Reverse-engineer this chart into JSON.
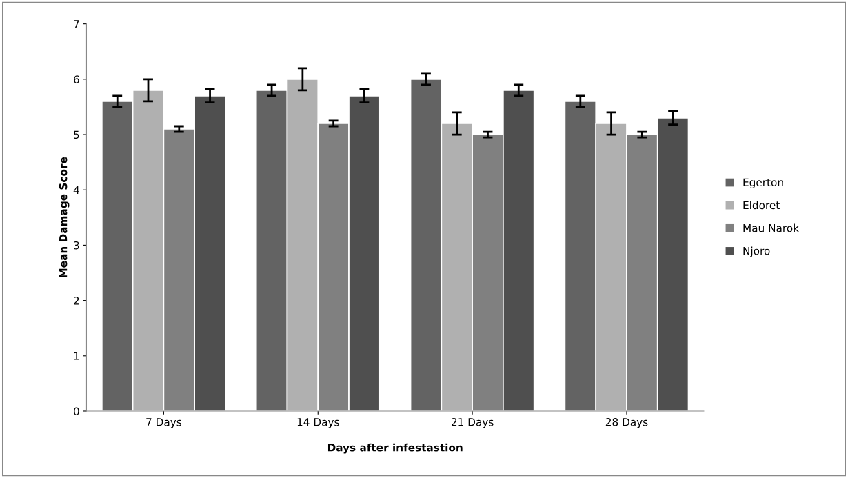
{
  "chart_data": {
    "type": "bar",
    "xlabel": "Days after infestastion",
    "ylabel": "Mean Damage Score",
    "categories": [
      "7 Days",
      "14 Days",
      "21 Days",
      "28 Days"
    ],
    "series": [
      {
        "name": "Egerton",
        "color": "#636363",
        "values": [
          5.6,
          5.8,
          6.0,
          5.6
        ],
        "errors": [
          0.1,
          0.1,
          0.1,
          0.1
        ]
      },
      {
        "name": "Eldoret",
        "color": "#b0b0b0",
        "values": [
          5.8,
          6.0,
          5.2,
          5.2
        ],
        "errors": [
          0.2,
          0.2,
          0.2,
          0.2
        ]
      },
      {
        "name": "Mau Narok",
        "color": "#808080",
        "values": [
          5.1,
          5.2,
          5.0,
          5.0
        ],
        "errors": [
          0.05,
          0.05,
          0.05,
          0.05
        ]
      },
      {
        "name": "Njoro",
        "color": "#4f4f4f",
        "values": [
          5.7,
          5.7,
          5.8,
          5.3
        ],
        "errors": [
          0.12,
          0.12,
          0.1,
          0.12
        ]
      }
    ],
    "ylim": [
      0,
      7
    ],
    "yticks": [
      0,
      1,
      2,
      3,
      4,
      5,
      6,
      7
    ],
    "grid": false,
    "legend": "right"
  }
}
